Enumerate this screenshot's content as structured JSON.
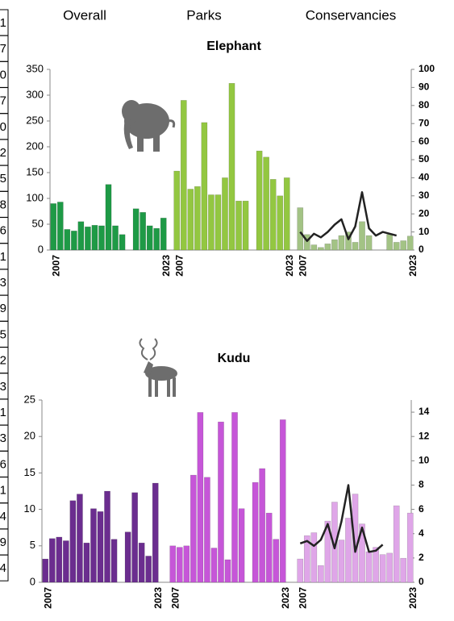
{
  "side_column": [
    "1",
    "7",
    "0",
    "7",
    "0",
    "2",
    "5",
    "8",
    "6",
    "1",
    "3",
    "9",
    "5",
    "2",
    "3",
    "1",
    "3",
    "6",
    "1",
    "4",
    "9",
    "4"
  ],
  "column_headers": [
    "Overall",
    "Parks",
    "Conservancies"
  ],
  "chart_data": [
    {
      "type": "bar",
      "title": "Elephant",
      "categories": [
        "2007",
        null,
        null,
        null,
        null,
        null,
        null,
        null,
        null,
        null,
        null,
        null,
        null,
        null,
        null,
        null,
        "2023"
      ],
      "ylim": [
        0,
        350
      ],
      "yticks": [
        0,
        50,
        100,
        150,
        200,
        250,
        300,
        350
      ],
      "y2lim": [
        0,
        100
      ],
      "y2ticks": [
        0,
        10,
        20,
        30,
        40,
        50,
        60,
        70,
        80,
        90,
        100
      ],
      "series": [
        {
          "type": "bar",
          "color": "#1e9a46",
          "values": [
            90,
            93,
            40,
            37,
            55,
            45,
            48,
            47,
            127,
            47,
            30,
            null,
            80,
            73,
            47,
            42,
            62
          ]
        },
        {
          "type": "bar",
          "color": "#93c741",
          "values": [
            153,
            290,
            118,
            123,
            247,
            107,
            107,
            140,
            323,
            95,
            95,
            null,
            192,
            180,
            137,
            105,
            140
          ]
        },
        {
          "type": "bar",
          "color": "#a3c385",
          "values": [
            82,
            30,
            10,
            5,
            12,
            20,
            28,
            35,
            15,
            55,
            28,
            null,
            null,
            30,
            15,
            18,
            27
          ]
        },
        {
          "type": "line",
          "axis": "y2",
          "color": "#222222",
          "values": [
            10,
            5,
            9,
            7,
            10,
            14,
            17,
            6,
            13,
            32,
            12,
            8,
            10,
            9,
            8,
            null,
            null
          ]
        }
      ]
    },
    {
      "type": "bar",
      "title": "Kudu",
      "categories": [
        "2007",
        null,
        null,
        null,
        null,
        null,
        null,
        null,
        null,
        null,
        null,
        null,
        null,
        null,
        null,
        null,
        "2023"
      ],
      "ylim": [
        0,
        25
      ],
      "yticks": [
        0,
        5,
        10,
        15,
        20,
        25
      ],
      "y2lim": [
        0,
        15
      ],
      "y2ticks": [
        0,
        2,
        4,
        6,
        8,
        10,
        12,
        14
      ],
      "series": [
        {
          "type": "bar",
          "color": "#6b2d8f",
          "values": [
            3.2,
            6,
            6.2,
            5.7,
            11.2,
            12.1,
            5.4,
            10.1,
            9.7,
            12.5,
            5.9,
            null,
            6.9,
            12.3,
            5.4,
            3.6,
            13.6
          ]
        },
        {
          "type": "bar",
          "color": "#c656d8",
          "values": [
            5,
            4.8,
            5,
            14.7,
            23.3,
            14.4,
            4.7,
            22,
            3.1,
            23.3,
            10.1,
            null,
            13.7,
            15.6,
            9.5,
            5.9,
            22.3
          ]
        },
        {
          "type": "bar",
          "color": "#dfa6e8",
          "values": [
            3.2,
            6.4,
            6.8,
            2.3,
            8.4,
            11,
            5.8,
            8.8,
            12.1,
            8,
            4.2,
            4.8,
            3.8,
            4,
            10.5,
            3.3,
            9.5
          ]
        },
        {
          "type": "line",
          "axis": "y2",
          "color": "#222222",
          "values": [
            3.2,
            3.4,
            3,
            3.5,
            4.8,
            2.8,
            5,
            8,
            2.5,
            4.5,
            2.5,
            2.6,
            3.1,
            null,
            null,
            null,
            null
          ]
        }
      ]
    }
  ]
}
